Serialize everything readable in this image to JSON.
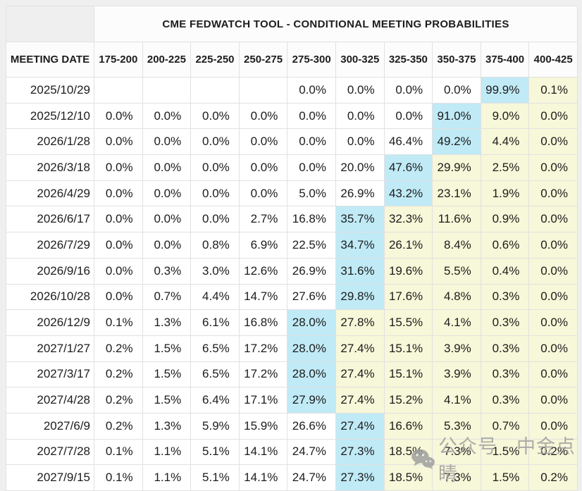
{
  "colors": {
    "page_bg": "#efefef",
    "table_bg": "#ffffff",
    "header_bg": "#fcfcfc",
    "border": "#e1e1e1",
    "cyan_highlight": "#c0eaf6",
    "yellow_highlight": "#f7f7d9",
    "text": "#1c1c1c",
    "watermark": "#9f9f9f"
  },
  "table": {
    "title": "CME FEDWATCH TOOL - CONDITIONAL MEETING PROBABILITIES",
    "date_column_header": "MEETING DATE",
    "rate_column_headers": [
      "175-200",
      "200-225",
      "225-250",
      "250-275",
      "275-300",
      "300-325",
      "325-350",
      "350-375",
      "375-400",
      "400-425"
    ],
    "rows": [
      {
        "date": "2025/10/29",
        "values": [
          "",
          "",
          "",
          "",
          "0.0%",
          "0.0%",
          "0.0%",
          "0.0%",
          "99.9%",
          "0.1%"
        ],
        "cyan_index": 8
      },
      {
        "date": "2025/12/10",
        "values": [
          "0.0%",
          "0.0%",
          "0.0%",
          "0.0%",
          "0.0%",
          "0.0%",
          "0.0%",
          "91.0%",
          "9.0%",
          "0.0%"
        ],
        "cyan_index": 7
      },
      {
        "date": "2026/1/28",
        "values": [
          "0.0%",
          "0.0%",
          "0.0%",
          "0.0%",
          "0.0%",
          "0.0%",
          "46.4%",
          "49.2%",
          "4.4%",
          "0.0%"
        ],
        "cyan_index": 7
      },
      {
        "date": "2026/3/18",
        "values": [
          "0.0%",
          "0.0%",
          "0.0%",
          "0.0%",
          "0.0%",
          "20.0%",
          "47.6%",
          "29.9%",
          "2.5%",
          "0.0%"
        ],
        "cyan_index": 6
      },
      {
        "date": "2026/4/29",
        "values": [
          "0.0%",
          "0.0%",
          "0.0%",
          "0.0%",
          "5.0%",
          "26.9%",
          "43.2%",
          "23.1%",
          "1.9%",
          "0.0%"
        ],
        "cyan_index": 6
      },
      {
        "date": "2026/6/17",
        "values": [
          "0.0%",
          "0.0%",
          "0.0%",
          "2.7%",
          "16.8%",
          "35.7%",
          "32.3%",
          "11.6%",
          "0.9%",
          "0.0%"
        ],
        "cyan_index": 5
      },
      {
        "date": "2026/7/29",
        "values": [
          "0.0%",
          "0.0%",
          "0.8%",
          "6.9%",
          "22.5%",
          "34.7%",
          "26.1%",
          "8.4%",
          "0.6%",
          "0.0%"
        ],
        "cyan_index": 5
      },
      {
        "date": "2026/9/16",
        "values": [
          "0.0%",
          "0.3%",
          "3.0%",
          "12.6%",
          "26.9%",
          "31.6%",
          "19.6%",
          "5.5%",
          "0.4%",
          "0.0%"
        ],
        "cyan_index": 5
      },
      {
        "date": "2026/10/28",
        "values": [
          "0.0%",
          "0.7%",
          "4.4%",
          "14.7%",
          "27.6%",
          "29.8%",
          "17.6%",
          "4.8%",
          "0.3%",
          "0.0%"
        ],
        "cyan_index": 5
      },
      {
        "date": "2026/12/9",
        "values": [
          "0.1%",
          "1.3%",
          "6.1%",
          "16.8%",
          "28.0%",
          "27.8%",
          "15.5%",
          "4.1%",
          "0.3%",
          "0.0%"
        ],
        "cyan_index": 4
      },
      {
        "date": "2027/1/27",
        "values": [
          "0.2%",
          "1.5%",
          "6.5%",
          "17.2%",
          "28.0%",
          "27.4%",
          "15.1%",
          "3.9%",
          "0.3%",
          "0.0%"
        ],
        "cyan_index": 4
      },
      {
        "date": "2027/3/17",
        "values": [
          "0.2%",
          "1.5%",
          "6.5%",
          "17.2%",
          "28.0%",
          "27.4%",
          "15.1%",
          "3.9%",
          "0.3%",
          "0.0%"
        ],
        "cyan_index": 4
      },
      {
        "date": "2027/4/28",
        "values": [
          "0.2%",
          "1.5%",
          "6.4%",
          "17.1%",
          "27.9%",
          "27.4%",
          "15.2%",
          "4.1%",
          "0.3%",
          "0.0%"
        ],
        "cyan_index": 4
      },
      {
        "date": "2027/6/9",
        "values": [
          "0.2%",
          "1.3%",
          "5.9%",
          "15.9%",
          "26.6%",
          "27.4%",
          "16.6%",
          "5.3%",
          "0.7%",
          "0.0%"
        ],
        "cyan_index": 5
      },
      {
        "date": "2027/7/28",
        "values": [
          "0.1%",
          "1.1%",
          "5.1%",
          "14.1%",
          "24.7%",
          "27.3%",
          "18.5%",
          "7.3%",
          "1.5%",
          "0.2%"
        ],
        "cyan_index": 5
      },
      {
        "date": "2027/9/15",
        "values": [
          "0.1%",
          "1.1%",
          "5.1%",
          "14.1%",
          "24.7%",
          "27.3%",
          "18.5%",
          "7.3%",
          "1.5%",
          "0.2%"
        ],
        "cyan_index": 5
      }
    ]
  },
  "watermark": {
    "icon": "wechat-icon",
    "text": "公众号 · 中金点睛"
  }
}
